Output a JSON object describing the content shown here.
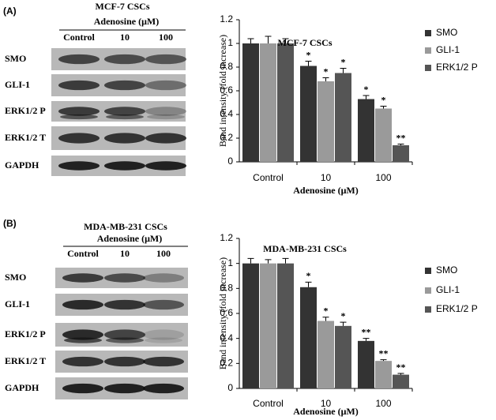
{
  "panels": [
    {
      "label": "(A)",
      "blot_title": "MCF-7 CSCs",
      "treatment": "Adenosine (μM)",
      "lanes": [
        "Control",
        "10",
        "100"
      ],
      "rows": [
        "SMO",
        "GLI-1",
        "ERK1/2 P",
        "ERK1/2 T",
        "GAPDH"
      ]
    },
    {
      "label": "(B)",
      "blot_title": "MDA-MB-231 CSCs",
      "treatment": "Adenosine (μM)",
      "lanes": [
        "Control",
        "10",
        "100"
      ],
      "rows": [
        "SMO",
        "GLI-1",
        "ERK1/2 P",
        "ERK1/2 T",
        "GAPDH"
      ]
    }
  ],
  "chart_data": [
    {
      "type": "bar",
      "title": "MCF-7 CSCs",
      "x_label": "Adenosine (μM)",
      "y_label": "Band intensity (fold increase)",
      "categories": [
        "Control",
        "10",
        "100"
      ],
      "series": [
        {
          "name": "SMO",
          "color": "#333333",
          "values": [
            1,
            0.81,
            0.53
          ],
          "errors": [
            0.04,
            0.04,
            0.03
          ],
          "significance": [
            null,
            "*",
            "*"
          ]
        },
        {
          "name": "GLI-1",
          "color": "#9a9a9a",
          "values": [
            1,
            0.68,
            0.45
          ],
          "errors": [
            0.06,
            0.03,
            0.02
          ],
          "significance": [
            null,
            "*",
            "*"
          ]
        },
        {
          "name": "ERK1/2 P",
          "color": "#555555",
          "values": [
            1,
            0.75,
            0.14
          ],
          "errors": [
            0.04,
            0.04,
            0.01
          ],
          "significance": [
            null,
            "*",
            "**"
          ]
        }
      ],
      "ylim": [
        0,
        1.2
      ],
      "yticks": [
        0,
        0.2,
        0.4,
        0.6,
        0.8,
        1,
        1.2
      ],
      "legend": "right"
    },
    {
      "type": "bar",
      "title": "MDA-MB-231 CSCs",
      "x_label": "Adenosine (μM)",
      "y_label": "Band intensity (fold increase)",
      "categories": [
        "Control",
        "10",
        "100"
      ],
      "series": [
        {
          "name": "SMO",
          "color": "#333333",
          "values": [
            1,
            0.81,
            0.38
          ],
          "errors": [
            0.04,
            0.04,
            0.02
          ],
          "significance": [
            null,
            "*",
            "**"
          ]
        },
        {
          "name": "GLI-1",
          "color": "#9a9a9a",
          "values": [
            1,
            0.54,
            0.22
          ],
          "errors": [
            0.03,
            0.03,
            0.01
          ],
          "significance": [
            null,
            "*",
            "**"
          ]
        },
        {
          "name": "ERK1/2 P",
          "color": "#555555",
          "values": [
            1,
            0.5,
            0.11
          ],
          "errors": [
            0.04,
            0.03,
            0.01
          ],
          "significance": [
            null,
            "*",
            "**"
          ]
        }
      ],
      "ylim": [
        0,
        1.2
      ],
      "yticks": [
        0,
        0.2,
        0.4,
        0.6,
        0.8,
        1,
        1.2
      ],
      "legend": "right"
    }
  ]
}
